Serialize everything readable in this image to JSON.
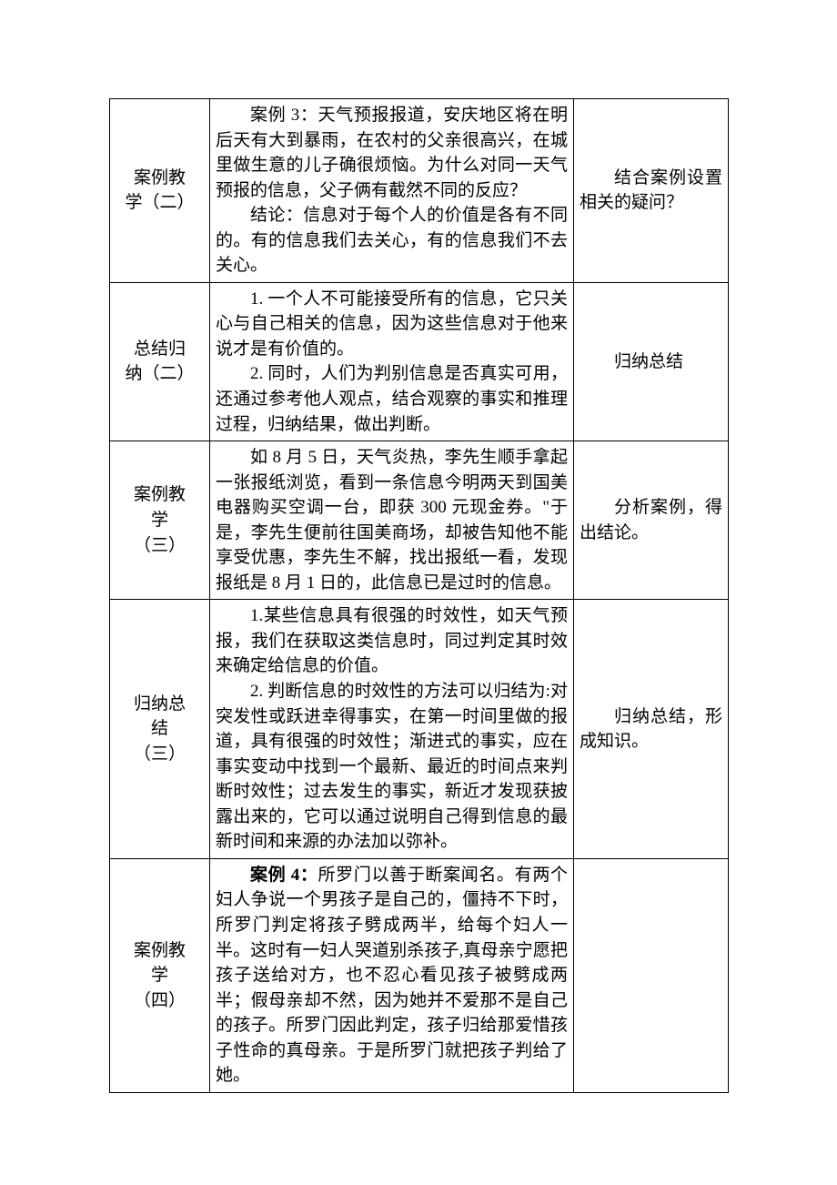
{
  "rows": [
    {
      "label_lines": [
        "案例教",
        "学（二）"
      ],
      "content_paras": [
        "案例 3：天气预报报道，安庆地区将在明后天有大到暴雨，在农村的父亲很高兴，在城里做生意的儿子确很烦恼。为什么对同一天气预报的信息，父子俩有截然不同的反应？",
        "结论：信息对于每个人的价值是各有不同的。有的信息我们去关心，有的信息我们不去关心。"
      ],
      "note_paras": [
        "结合案例设置相关的疑问？"
      ]
    },
    {
      "label_lines": [
        "总结归",
        "纳（二）"
      ],
      "content_paras": [
        "1. 一个人不可能接受所有的信息，它只关心与自己相关的信息，因为这些信息对于他来说才是有价值的。",
        "2. 同时，人们为判别信息是否真实可用，还通过参考他人观点，结合观察的事实和推理过程，归纳结果，做出判断。"
      ],
      "note_paras": [
        "归纳总结"
      ]
    },
    {
      "label_lines": [
        "案例教",
        "学",
        "（三）"
      ],
      "content_paras": [
        "如 8 月 5 日，天气炎热，李先生顺手拿起一张报纸浏览，看到一条信息今明两天到国美电器购买空调一台，即获 300 元现金券。\"于是，李先生便前往国美商场，却被告知他不能享受优惠，李先生不解，找出报纸一看，发现报纸是 8 月 1 日的，此信息已是过时的信息。"
      ],
      "note_paras": [
        "分析案例，得出结论。"
      ]
    },
    {
      "label_lines": [
        "归纳总",
        "结",
        "（三）"
      ],
      "content_paras": [
        "1.某些信息具有很强的时效性，如天气预报，我们在获取这类信息时，同过判定其时效来确定给信息的价值。",
        "2. 判断信息的时效性的方法可以归结为:对突发性或跃进幸得事实，在第一时间里做的报道，具有很强的时效性；渐进式的事实，应在事实变动中找到一个最新、最近的时间点来判断时效性；过去发生的事实，新近才发现获披露出来的，它可以通过说明自己得到信息的最新时间和来源的办法加以弥补。"
      ],
      "note_paras": [
        "归纳总结，形成知识。"
      ]
    },
    {
      "label_lines": [
        "案例教",
        "学",
        "（四）"
      ],
      "content_bold_prefix": "案例 4：",
      "content_paras": [
        "所罗门以善于断案闻名。有两个妇人争说一个男孩子是自己的，僵持不下时，所罗门判定将孩子劈成两半，给每个妇人一半。这时有一妇人哭道别杀孩子,真母亲宁愿把孩子送给对方，也不忍心看见孩子被劈成两半；假母亲却不然，因为她并不爱那不是自己的孩子。所罗门因此判定，孩子归给那爱惜孩子性命的真母亲。于是所罗门就把孩子判给了她。"
      ],
      "note_paras": []
    }
  ]
}
